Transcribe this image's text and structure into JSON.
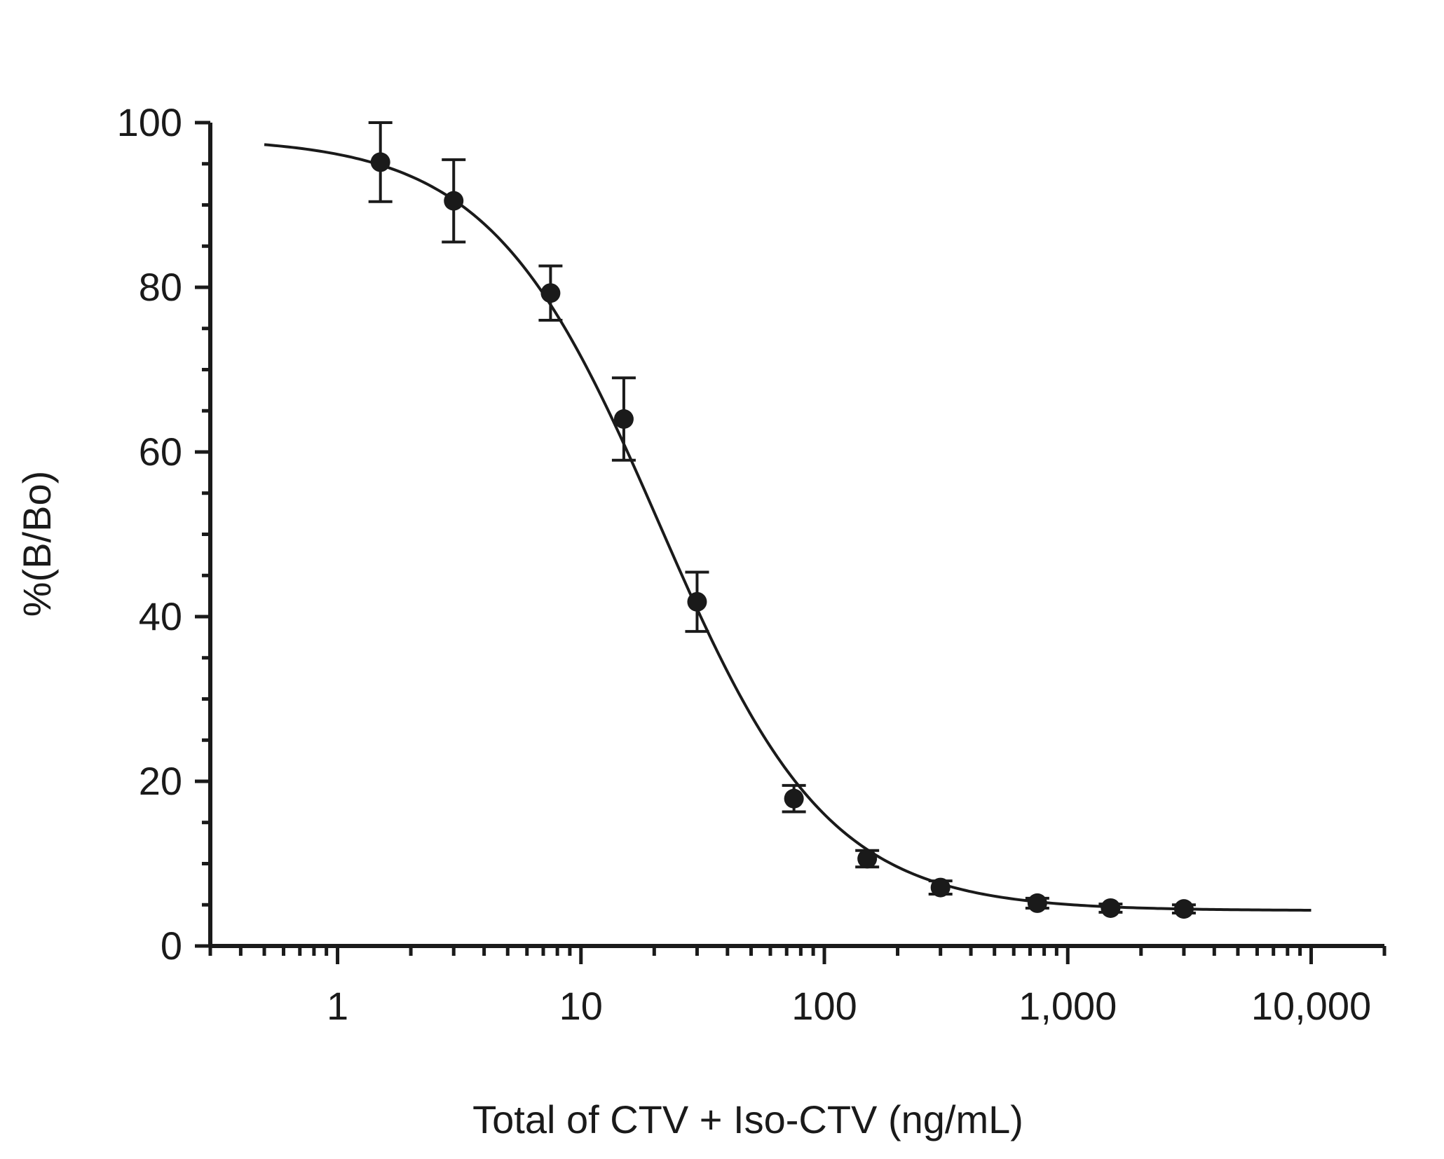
{
  "chart_data": {
    "type": "scatter",
    "title": "",
    "xlabel": "Total of CTV + Iso-CTV (ng/mL)",
    "ylabel": "%(B/Bo)",
    "x_scale": "log",
    "xlim": [
      0.3,
      20000
    ],
    "ylim": [
      0,
      100
    ],
    "grid": false,
    "x_ticks": [
      {
        "value": 1,
        "label": "1"
      },
      {
        "value": 10,
        "label": "10"
      },
      {
        "value": 100,
        "label": "100"
      },
      {
        "value": 1000,
        "label": "1,000"
      },
      {
        "value": 10000,
        "label": "10,000"
      }
    ],
    "y_ticks": [
      {
        "value": 0,
        "label": "0"
      },
      {
        "value": 20,
        "label": "20"
      },
      {
        "value": 40,
        "label": "40"
      },
      {
        "value": 60,
        "label": "60"
      },
      {
        "value": 80,
        "label": "80"
      },
      {
        "value": 100,
        "label": "100"
      }
    ],
    "series": [
      {
        "type": "scatter",
        "marker": "filled-circle",
        "color": "#1a1a1a",
        "points": [
          {
            "x": 1.5,
            "y": 95.2,
            "err": 4.8
          },
          {
            "x": 3,
            "y": 90.5,
            "err": 5.0
          },
          {
            "x": 7.5,
            "y": 79.3,
            "err": 3.3
          },
          {
            "x": 15,
            "y": 64.0,
            "err": 5.0
          },
          {
            "x": 30,
            "y": 41.8,
            "err": 3.6
          },
          {
            "x": 75,
            "y": 17.9,
            "err": 1.6
          },
          {
            "x": 150,
            "y": 10.6,
            "err": 1.0
          },
          {
            "x": 300,
            "y": 7.1,
            "err": 0.8
          },
          {
            "x": 750,
            "y": 5.2,
            "err": 0.6
          },
          {
            "x": 1500,
            "y": 4.6,
            "err": 0.5
          },
          {
            "x": 3000,
            "y": 4.5,
            "err": 0.5
          }
        ]
      },
      {
        "type": "line",
        "color": "#1a1a1a",
        "fit": {
          "model": "4PL",
          "top": 98.2,
          "bottom": 4.3,
          "ec50": 21.0,
          "hill": 1.25
        },
        "x_range": [
          0.5,
          10000
        ]
      }
    ]
  }
}
